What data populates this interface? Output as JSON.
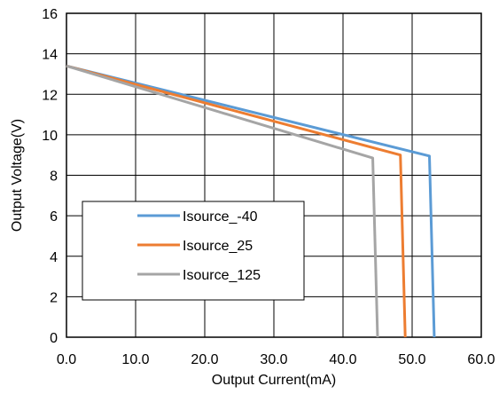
{
  "chart_data": {
    "type": "line",
    "xlabel": "Output Current(mA)",
    "ylabel": "Output Voltage(V)",
    "xlim": [
      0,
      60
    ],
    "ylim": [
      0,
      16
    ],
    "x_ticks": [
      0,
      10,
      20,
      30,
      40,
      50,
      60
    ],
    "x_tick_labels": [
      "0.0",
      "10.0",
      "20.0",
      "30.0",
      "40.0",
      "50.0",
      "60.0"
    ],
    "y_ticks": [
      0,
      2,
      4,
      6,
      8,
      10,
      12,
      14,
      16
    ],
    "y_tick_labels": [
      "0",
      "2",
      "4",
      "6",
      "8",
      "10",
      "12",
      "14",
      "16"
    ],
    "grid": true,
    "legend_position": "bottom-left",
    "series": [
      {
        "name": "Isource_-40",
        "color": "#5B9BD5",
        "x": [
          0,
          52.5,
          53.2
        ],
        "y": [
          13.4,
          8.95,
          0
        ]
      },
      {
        "name": "Isource_25",
        "color": "#ED7D31",
        "x": [
          0,
          48.3,
          49.0
        ],
        "y": [
          13.4,
          9.0,
          0
        ]
      },
      {
        "name": "Isource_125",
        "color": "#A5A5A5",
        "x": [
          0,
          44.3,
          45.0
        ],
        "y": [
          13.4,
          8.85,
          0
        ]
      }
    ]
  }
}
